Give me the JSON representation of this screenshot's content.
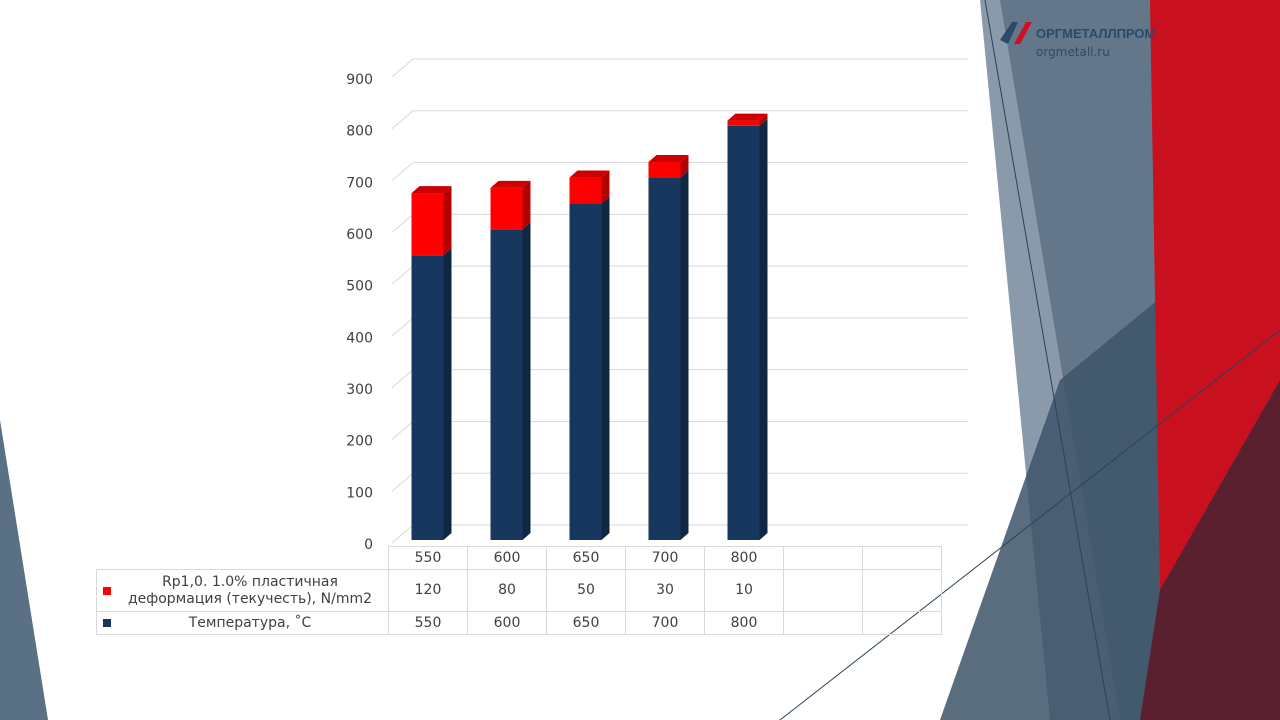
{
  "logo": {
    "name": "ОРГМЕТАЛЛПРОМ",
    "url": "orgmetall.ru"
  },
  "chart_data": {
    "type": "bar",
    "stacked": true,
    "grid": true,
    "categories": [
      "550",
      "600",
      "650",
      "700",
      "800",
      null,
      null
    ],
    "series": [
      {
        "name": "Температура, ˚C",
        "color": "#17375e",
        "values": [
          550,
          600,
          650,
          700,
          800,
          null,
          null
        ]
      },
      {
        "name": "Rp1,0. 1.0% пластичная деформация (текучесть), N/mm2",
        "color": "#ff0000",
        "values": [
          120,
          80,
          50,
          30,
          10,
          null,
          null
        ]
      }
    ],
    "ylim": [
      0,
      900
    ],
    "yticks": [
      0,
      100,
      200,
      300,
      400,
      500,
      600,
      700,
      800,
      900
    ]
  }
}
